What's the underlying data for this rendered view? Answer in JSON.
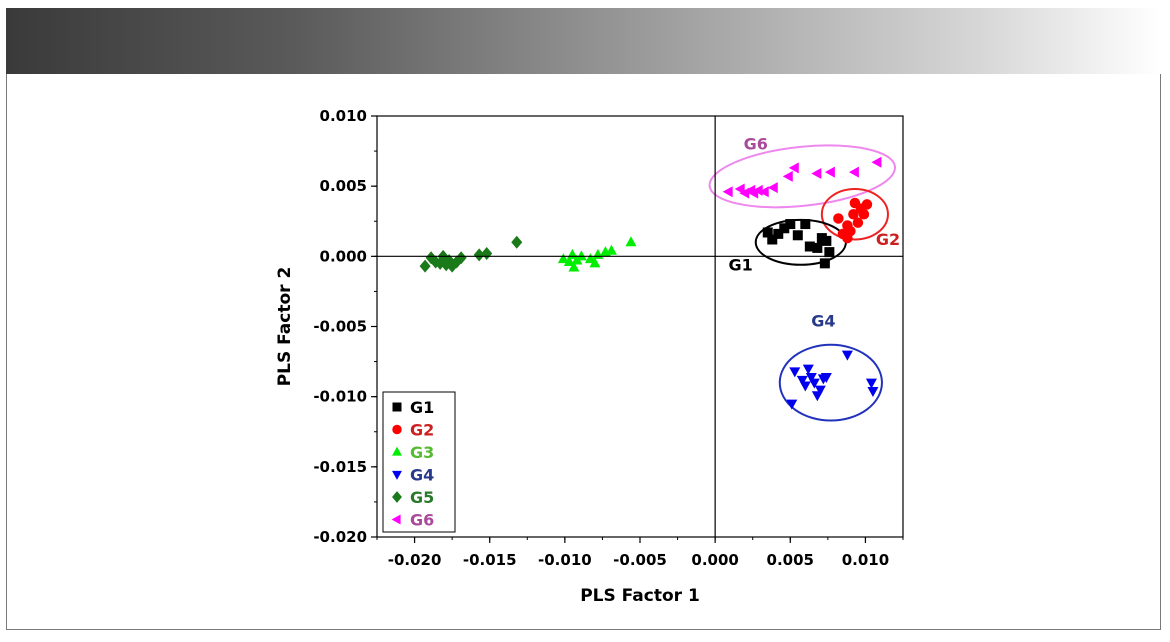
{
  "chart_data": {
    "type": "scatter",
    "xlabel": "PLS Factor 1",
    "ylabel": "PLS Factor 2",
    "xlim": [
      -0.0225,
      0.0125
    ],
    "ylim": [
      -0.02,
      0.01
    ],
    "x_ticks": [
      "-0.020",
      "-0.015",
      "-0.010",
      "-0.005",
      "0.000",
      "0.005",
      "0.010"
    ],
    "x_tick_values": [
      -0.02,
      -0.015,
      -0.01,
      -0.005,
      0.0,
      0.005,
      0.01
    ],
    "y_ticks": [
      "0.010",
      "0.005",
      "0.000",
      "-0.005",
      "-0.010",
      "-0.015",
      "-0.020"
    ],
    "y_tick_values": [
      0.01,
      0.005,
      0.0,
      -0.005,
      -0.01,
      -0.015,
      -0.02
    ],
    "grid": false,
    "legend": {
      "position": "bottom-left"
    },
    "series": [
      {
        "name": "G1",
        "marker": "square",
        "color": "#000000",
        "label_color": "#000000",
        "points": [
          [
            0.0035,
            0.0017
          ],
          [
            0.0038,
            0.0012
          ],
          [
            0.0042,
            0.0016
          ],
          [
            0.0046,
            0.002
          ],
          [
            0.005,
            0.0023
          ],
          [
            0.0055,
            0.0015
          ],
          [
            0.006,
            0.0023
          ],
          [
            0.0063,
            0.0007
          ],
          [
            0.0068,
            0.0006
          ],
          [
            0.0071,
            0.0013
          ],
          [
            0.0074,
            0.0011
          ],
          [
            0.0073,
            -0.0005
          ],
          [
            0.0076,
            0.0003
          ]
        ]
      },
      {
        "name": "G2",
        "marker": "circle",
        "color": "#ff0000",
        "label_color": "#cc2020",
        "points": [
          [
            0.0082,
            0.0027
          ],
          [
            0.0085,
            0.0016
          ],
          [
            0.0088,
            0.0022
          ],
          [
            0.009,
            0.0018
          ],
          [
            0.0092,
            0.003
          ],
          [
            0.0093,
            0.0038
          ],
          [
            0.0095,
            0.0024
          ],
          [
            0.0097,
            0.0034
          ],
          [
            0.0099,
            0.003
          ],
          [
            0.0101,
            0.0037
          ],
          [
            0.0088,
            0.0013
          ]
        ]
      },
      {
        "name": "G3",
        "marker": "triangle-up",
        "color": "#00ee00",
        "label_color": "#55bb33",
        "points": [
          [
            -0.0101,
            -0.0002
          ],
          [
            -0.0097,
            -0.0004
          ],
          [
            -0.0095,
            0.0001
          ],
          [
            -0.0094,
            -0.0008
          ],
          [
            -0.0092,
            -0.0003
          ],
          [
            -0.0089,
            0.0
          ],
          [
            -0.0083,
            -0.0002
          ],
          [
            -0.008,
            -0.0005
          ],
          [
            -0.0078,
            0.0001
          ],
          [
            -0.0073,
            0.0003
          ],
          [
            -0.0069,
            0.0004
          ],
          [
            -0.0056,
            0.001
          ]
        ]
      },
      {
        "name": "G4",
        "marker": "triangle-down",
        "color": "#0000ee",
        "label_color": "#2a3a8a",
        "points": [
          [
            0.0051,
            -0.0105
          ],
          [
            0.0053,
            -0.0082
          ],
          [
            0.0058,
            -0.0088
          ],
          [
            0.006,
            -0.0092
          ],
          [
            0.0062,
            -0.008
          ],
          [
            0.0064,
            -0.0086
          ],
          [
            0.0066,
            -0.009
          ],
          [
            0.0068,
            -0.0099
          ],
          [
            0.007,
            -0.0095
          ],
          [
            0.0072,
            -0.0087
          ],
          [
            0.0074,
            -0.0086
          ],
          [
            0.0088,
            -0.007
          ],
          [
            0.0104,
            -0.009
          ],
          [
            0.0105,
            -0.0096
          ]
        ]
      },
      {
        "name": "G5",
        "marker": "diamond",
        "color": "#1a7a1a",
        "label_color": "#2a7a2a",
        "points": [
          [
            -0.0193,
            -0.0007
          ],
          [
            -0.0189,
            -0.0001
          ],
          [
            -0.0186,
            -0.0004
          ],
          [
            -0.0183,
            -0.0005
          ],
          [
            -0.0181,
            0.0
          ],
          [
            -0.0179,
            -0.0006
          ],
          [
            -0.0177,
            -0.0003
          ],
          [
            -0.0175,
            -0.0007
          ],
          [
            -0.0172,
            -0.0004
          ],
          [
            -0.0169,
            -0.0001
          ],
          [
            -0.0157,
            0.0001
          ],
          [
            -0.0152,
            0.0002
          ],
          [
            -0.0132,
            0.001
          ]
        ]
      },
      {
        "name": "G6",
        "marker": "triangle-left",
        "color": "#ff00ff",
        "label_color": "#aa4a9a",
        "points": [
          [
            0.0009,
            0.0046
          ],
          [
            0.0017,
            0.0048
          ],
          [
            0.002,
            0.0045
          ],
          [
            0.0024,
            0.0047
          ],
          [
            0.0026,
            0.0045
          ],
          [
            0.0029,
            0.0047
          ],
          [
            0.0033,
            0.0046
          ],
          [
            0.0039,
            0.0049
          ],
          [
            0.0049,
            0.0057
          ],
          [
            0.0053,
            0.0063
          ],
          [
            0.0068,
            0.0059
          ],
          [
            0.0077,
            0.006
          ],
          [
            0.0093,
            0.006
          ],
          [
            0.0108,
            0.0067
          ]
        ]
      }
    ],
    "annotations": [
      {
        "text": "G6",
        "x": 0.0027,
        "y": 0.0076,
        "color": "#aa4a9a"
      },
      {
        "text": "G2",
        "x": 0.0115,
        "y": 0.0008,
        "color": "#cc2020"
      },
      {
        "text": "G1",
        "x": 0.0017,
        "y": -0.001,
        "color": "#000000"
      },
      {
        "text": "G4",
        "x": 0.0072,
        "y": -0.005,
        "color": "#2a3a8a"
      }
    ],
    "ellipses": [
      {
        "group": "G6",
        "cx": 0.0058,
        "cy": 0.0057,
        "rx": 0.0062,
        "ry": 0.0021,
        "angle": -6,
        "color": "#ee88ee"
      },
      {
        "group": "G2",
        "cx": 0.0093,
        "cy": 0.003,
        "rx": 0.0022,
        "ry": 0.0018,
        "angle": 0,
        "color": "#ee2222"
      },
      {
        "group": "G1",
        "cx": 0.0057,
        "cy": 0.001,
        "rx": 0.003,
        "ry": 0.0016,
        "angle": 0,
        "color": "#000000"
      },
      {
        "group": "G4",
        "cx": 0.0077,
        "cy": -0.009,
        "rx": 0.0034,
        "ry": 0.0027,
        "angle": 0,
        "color": "#2233bb"
      }
    ]
  }
}
